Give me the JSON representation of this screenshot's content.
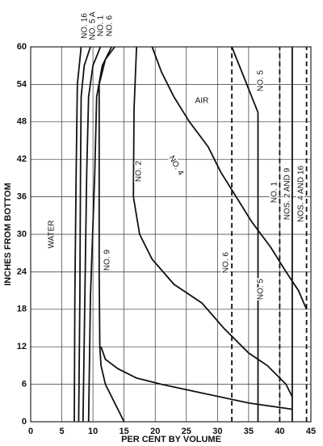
{
  "chart_data": {
    "type": "line",
    "x_label": "PER CENT BY VOLUME",
    "y_label": "INCHES FROM BOTTOM",
    "xlim": [
      0,
      45
    ],
    "xticks": [
      0,
      5,
      10,
      15,
      20,
      25,
      30,
      35,
      40,
      45
    ],
    "ylim": [
      0,
      60
    ],
    "yticks": [
      0,
      6,
      12,
      18,
      24,
      30,
      36,
      42,
      48,
      54,
      60
    ],
    "grid": true,
    "color": "#111111",
    "annotations": [
      "AIR",
      "WATER"
    ],
    "series": [
      {
        "name": "NO. 16",
        "x": [
          7,
          7.1,
          7.3,
          7.5,
          8.1
        ],
        "values": [
          0,
          20,
          40,
          54,
          60
        ]
      },
      {
        "name": "NO. 5 A",
        "x": [
          7.7,
          7.9,
          8,
          8.1,
          8.6,
          9.6
        ],
        "values": [
          0,
          20,
          40,
          52,
          57,
          60
        ]
      },
      {
        "name": "NO. 1",
        "x": [
          8.4,
          8.7,
          9,
          9.3,
          10,
          11.2
        ],
        "values": [
          0,
          20,
          40,
          52,
          57,
          60
        ]
      },
      {
        "name": "NO. 6",
        "x": [
          9.3,
          9.6,
          10.3,
          10.6,
          11.5,
          13
        ],
        "values": [
          0,
          20,
          40,
          52,
          57,
          60
        ]
      },
      {
        "name": "NO. 9",
        "x": [
          15,
          13.5,
          12,
          11.3,
          11.1,
          11,
          11,
          12,
          13.5
        ],
        "values": [
          0,
          3,
          6,
          9,
          12,
          24,
          54,
          58,
          60
        ]
      },
      {
        "name": "NO. 2",
        "x": [
          17,
          16.6,
          16.5,
          17.5,
          19.5,
          23,
          27.5,
          31,
          35,
          38,
          41,
          42
        ],
        "values": [
          60,
          50,
          36,
          30,
          26,
          22,
          19,
          15,
          11,
          9,
          6,
          4
        ]
      },
      {
        "name": "NO. 4",
        "x": [
          19.5,
          21,
          23,
          25.5,
          28.5,
          30.5,
          33,
          35.5,
          38.5,
          41,
          43,
          44.3
        ],
        "values": [
          60,
          56,
          52,
          48,
          44,
          40,
          36,
          32,
          28,
          24,
          21,
          18
        ]
      },
      {
        "name": "NO. 6",
        "x": [
          32.3,
          32.3
        ],
        "values": [
          0,
          60
        ],
        "dashed": true
      },
      {
        "name": "NO. 5",
        "x": [
          36.5,
          36.5
        ],
        "values": [
          0,
          49.5
        ]
      },
      {
        "name": "NO. 1",
        "x": [
          40,
          40
        ],
        "values": [
          0,
          60
        ],
        "dashed": true
      },
      {
        "name": "NOS. 2 AND 9",
        "x": [
          42,
          42
        ],
        "values": [
          0,
          60
        ]
      },
      {
        "name": "NOS. 4 AND 16",
        "x": [
          44.3,
          44.3
        ],
        "values": [
          0,
          60
        ],
        "dashed": true
      },
      {
        "name": "NO. 5",
        "x": [
          32.3,
          36.5
        ],
        "values": [
          60,
          49.5
        ]
      },
      {
        "x": [
          11.3,
          12,
          14,
          17,
          21,
          28,
          35,
          42
        ],
        "values": [
          12,
          10,
          8.5,
          7,
          6,
          4.5,
          3,
          2
        ]
      }
    ]
  }
}
